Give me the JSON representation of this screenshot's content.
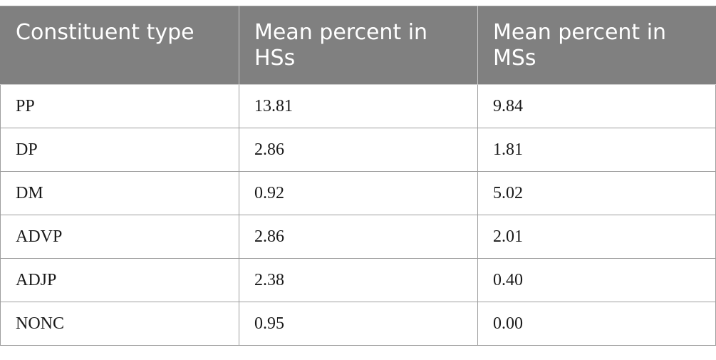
{
  "table": {
    "headers": [
      "Constituent type",
      "Mean percent in HSs",
      "Mean percent in MSs"
    ],
    "rows": [
      [
        "PP",
        "13.81",
        "9.84"
      ],
      [
        "DP",
        "2.86",
        "1.81"
      ],
      [
        "DM",
        "0.92",
        "5.02"
      ],
      [
        "ADVP",
        "2.86",
        "2.01"
      ],
      [
        "ADJP",
        "2.38",
        "0.40"
      ],
      [
        "NONC",
        "0.95",
        "0.00"
      ]
    ]
  },
  "colors": {
    "header_bg": "#808080",
    "header_text": "#ffffff",
    "border": "#9e9e9e"
  }
}
